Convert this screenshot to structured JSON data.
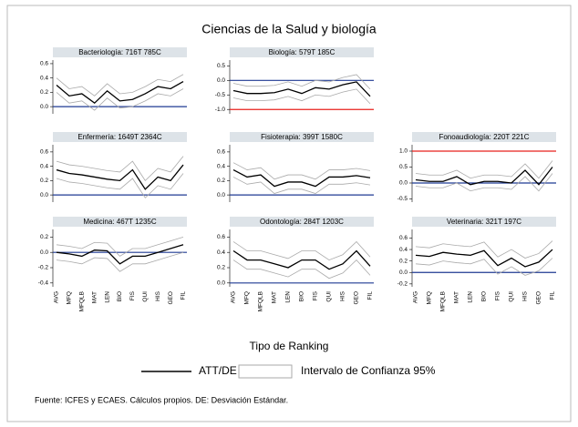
{
  "title": "Ciencias de la Salud y biología",
  "xlabel": "Tipo de Ranking",
  "legend": [
    "ATT/DE",
    "Intervalo de Confianza 95%"
  ],
  "note": "Fuente: ICFES y ECAES. Cálculos propios. DE: Desviación Estándar.",
  "categories": [
    "AVG",
    "MFQ",
    "MFQLB",
    "MAT",
    "LEN",
    "BIO",
    "FIS",
    "QUI",
    "HIS",
    "GEO",
    "FIL"
  ],
  "chart_data": [
    {
      "type": "line",
      "title": "Bacteriología: 716T 785C",
      "ylim": [
        -0.1,
        0.65
      ],
      "yticks": [
        {
          "value": 0,
          "label": "0.0"
        },
        0.2,
        0.4,
        0.6
      ],
      "values": [
        0.3,
        0.15,
        0.18,
        0.05,
        0.22,
        0.08,
        0.1,
        0.18,
        0.28,
        0.25,
        0.35
      ],
      "ci_lower": [
        0.2,
        0.05,
        0.08,
        -0.05,
        0.12,
        -0.02,
        0.0,
        0.08,
        0.18,
        0.15,
        0.25
      ],
      "ci_upper": [
        0.4,
        0.25,
        0.28,
        0.15,
        0.32,
        0.18,
        0.2,
        0.28,
        0.38,
        0.35,
        0.45
      ],
      "hlines": [
        {
          "value": 0,
          "color": "#1f3a93"
        }
      ]
    },
    {
      "type": "line",
      "title": "Biología: 579T 185C",
      "ylim": [
        -1.15,
        0.7
      ],
      "yticks": [
        {
          "value": -1,
          "label": "-1.0"
        },
        -0.5,
        {
          "value": 0,
          "label": "0.0"
        },
        0.5
      ],
      "values": [
        -0.35,
        -0.45,
        -0.45,
        -0.42,
        -0.3,
        -0.45,
        -0.25,
        -0.3,
        -0.15,
        -0.05,
        -0.55
      ],
      "ci_lower": [
        -0.6,
        -0.7,
        -0.7,
        -0.67,
        -0.55,
        -0.7,
        -0.5,
        -0.55,
        -0.4,
        -0.3,
        -0.8
      ],
      "ci_upper": [
        -0.1,
        -0.2,
        -0.2,
        -0.17,
        -0.05,
        -0.2,
        0.0,
        -0.05,
        0.1,
        0.2,
        -0.3
      ],
      "hlines": [
        {
          "value": 0,
          "color": "#1f3a93"
        },
        {
          "value": -1,
          "color": "#e8201c"
        }
      ]
    },
    null,
    {
      "type": "line",
      "title": "Enfermería: 1649T 2364C",
      "ylim": [
        -0.1,
        0.7
      ],
      "yticks": [
        {
          "value": 0,
          "label": "0.0"
        },
        0.2,
        0.4,
        0.6
      ],
      "values": [
        0.35,
        0.3,
        0.28,
        0.25,
        0.22,
        0.2,
        0.35,
        0.08,
        0.25,
        0.2,
        0.42
      ],
      "ci_lower": [
        0.23,
        0.18,
        0.16,
        0.13,
        0.1,
        0.08,
        0.23,
        -0.04,
        0.13,
        0.08,
        0.3
      ],
      "ci_upper": [
        0.47,
        0.42,
        0.4,
        0.37,
        0.34,
        0.32,
        0.47,
        0.2,
        0.37,
        0.32,
        0.54
      ],
      "hlines": [
        {
          "value": 0,
          "color": "#1f3a93"
        }
      ]
    },
    {
      "type": "line",
      "title": "Fisioterapia: 399T 1580C",
      "ylim": [
        -0.1,
        0.7
      ],
      "yticks": [
        {
          "value": 0,
          "label": "0.0"
        },
        0.2,
        0.4,
        0.6
      ],
      "values": [
        0.35,
        0.25,
        0.28,
        0.12,
        0.18,
        0.18,
        0.12,
        0.25,
        0.25,
        0.27,
        0.24
      ],
      "ci_lower": [
        0.25,
        0.15,
        0.18,
        0.02,
        0.08,
        0.08,
        0.02,
        0.15,
        0.15,
        0.17,
        0.14
      ],
      "ci_upper": [
        0.45,
        0.35,
        0.38,
        0.22,
        0.28,
        0.28,
        0.22,
        0.35,
        0.35,
        0.37,
        0.34
      ],
      "hlines": [
        {
          "value": 0,
          "color": "#1f3a93"
        }
      ]
    },
    {
      "type": "line",
      "title": "Fonoaudiología: 220T 221C",
      "ylim": [
        -0.6,
        1.2
      ],
      "yticks": [
        -0.5,
        {
          "value": 0,
          "label": "0.0"
        },
        0.5,
        {
          "value": 1,
          "label": "1.0"
        }
      ],
      "values": [
        0.1,
        0.05,
        0.05,
        0.2,
        -0.05,
        0.05,
        0.05,
        0,
        0.4,
        -0.05,
        0.5
      ],
      "ci_lower": [
        -0.1,
        -0.15,
        -0.15,
        0.0,
        -0.25,
        -0.15,
        -0.15,
        -0.2,
        0.2,
        -0.25,
        0.3
      ],
      "ci_upper": [
        0.3,
        0.25,
        0.25,
        0.4,
        0.15,
        0.25,
        0.25,
        0.2,
        0.6,
        0.15,
        0.7
      ],
      "hlines": [
        {
          "value": 0,
          "color": "#1f3a93"
        },
        {
          "value": 1,
          "color": "#e8201c"
        }
      ]
    },
    {
      "type": "line",
      "title": "Medicina: 467T 1235C",
      "ylim": [
        -0.45,
        0.3
      ],
      "yticks": [
        -0.4,
        -0.2,
        {
          "value": 0,
          "label": "0.0"
        },
        0.2
      ],
      "values": [
        0,
        -0.02,
        -0.05,
        0.03,
        0.02,
        -0.15,
        -0.05,
        -0.05,
        0,
        0.05,
        0.1
      ],
      "ci_lower": [
        -0.1,
        -0.12,
        -0.15,
        -0.07,
        -0.08,
        -0.25,
        -0.15,
        -0.15,
        -0.1,
        -0.05,
        0.0
      ],
      "ci_upper": [
        0.1,
        0.08,
        0.05,
        0.13,
        0.12,
        -0.05,
        0.05,
        0.05,
        0.1,
        0.15,
        0.2
      ],
      "hlines": [
        {
          "value": 0,
          "color": "#1f3a93"
        }
      ]
    },
    {
      "type": "line",
      "title": "Odontología: 284T 1203C",
      "ylim": [
        -0.05,
        0.7
      ],
      "yticks": [
        {
          "value": 0,
          "label": "0.0"
        },
        0.2,
        0.4,
        0.6
      ],
      "values": [
        0.42,
        0.3,
        0.3,
        0.25,
        0.2,
        0.3,
        0.3,
        0.18,
        0.25,
        0.42,
        0.22
      ],
      "ci_lower": [
        0.3,
        0.18,
        0.18,
        0.13,
        0.08,
        0.18,
        0.18,
        0.06,
        0.13,
        0.3,
        0.1
      ],
      "ci_upper": [
        0.54,
        0.42,
        0.42,
        0.37,
        0.32,
        0.42,
        0.42,
        0.3,
        0.37,
        0.54,
        0.34
      ],
      "hlines": [
        {
          "value": 0,
          "color": "#1f3a93"
        }
      ]
    },
    {
      "type": "line",
      "title": "Veterinaria: 321T 197C",
      "ylim": [
        -0.25,
        0.75
      ],
      "yticks": [
        -0.2,
        {
          "value": 0,
          "label": "0.0"
        },
        0.2,
        0.4,
        0.6
      ],
      "values": [
        0.3,
        0.28,
        0.35,
        0.32,
        0.3,
        0.38,
        0.12,
        0.25,
        0.1,
        0.18,
        0.4
      ],
      "ci_lower": [
        0.15,
        0.13,
        0.2,
        0.17,
        0.15,
        0.23,
        -0.03,
        0.1,
        -0.05,
        0.03,
        0.25
      ],
      "ci_upper": [
        0.45,
        0.43,
        0.5,
        0.47,
        0.45,
        0.53,
        0.27,
        0.4,
        0.25,
        0.33,
        0.55
      ],
      "hlines": [
        {
          "value": 0,
          "color": "#1f3a93"
        }
      ]
    }
  ]
}
